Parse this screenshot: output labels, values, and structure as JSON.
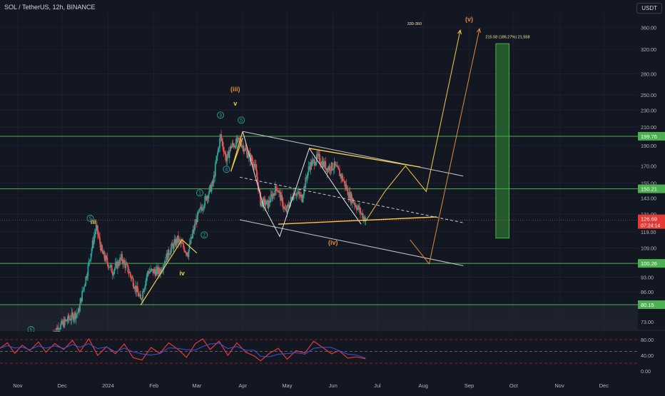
{
  "header": {
    "symbol": "SOL / TetherUS, 12h, BINANCE",
    "currency": "USDT"
  },
  "colors": {
    "background": "#131722",
    "bull": "#26a69a",
    "bear": "#ef5350",
    "hline": "#4caf50",
    "yellow": "#f7c948",
    "orange": "#e08a3c",
    "channel": "#c8c8c8",
    "rsi_red": "#e53935",
    "rsi_blue": "#3f51d5",
    "target_box": "#2e7d32",
    "price_tag": "#e53935"
  },
  "chart_data": {
    "type": "candlestick",
    "price_axis": {
      "scale": "log",
      "ylim": [
        70,
        390
      ],
      "ticks": [
        "360.00",
        "320.00",
        "280.00",
        "250.00",
        "230.00",
        "210.00",
        "190.00",
        "170.00",
        "155.00",
        "143.00",
        "131.00",
        "119.00",
        "109.00",
        "100.00",
        "93.00",
        "86.00",
        "80.15",
        "73.00"
      ],
      "tick_values": [
        360,
        320,
        280,
        250,
        230,
        210,
        190,
        170,
        155,
        143,
        131,
        119,
        109,
        100,
        93,
        86,
        80.15,
        73
      ]
    },
    "time_axis": {
      "labels": [
        "Nov",
        "Dec",
        "2024",
        "Feb",
        "Mar",
        "Apr",
        "May",
        "Jun",
        "Jul",
        "Aug",
        "Sep",
        "Oct",
        "Dec"
      ],
      "label_dates": [
        "2023-11-01",
        "2023-12-01",
        "2024-01-01",
        "2024-02-01",
        "2024-03-01",
        "2024-04-01",
        "2024-05-01",
        "2024-06-01",
        "2024-07-01",
        "2024-08-01",
        "2024-09-01",
        "2024-10-01",
        "2024-12-01"
      ],
      "extra_tick_date": "2024-11-01",
      "extra_tick_label": "Nov",
      "range": [
        "2023-10-20",
        "2024-12-24"
      ]
    },
    "price_path": [
      [
        "2023-11-25",
        69
      ],
      [
        "2023-12-05",
        74
      ],
      [
        "2023-12-12",
        77
      ],
      [
        "2023-12-18",
        96
      ],
      [
        "2023-12-24",
        122
      ],
      [
        "2023-12-28",
        106
      ],
      [
        "2024-01-04",
        96
      ],
      [
        "2024-01-10",
        103
      ],
      [
        "2024-01-15",
        96
      ],
      [
        "2024-01-23",
        82
      ],
      [
        "2024-01-28",
        96
      ],
      [
        "2024-02-05",
        96
      ],
      [
        "2024-02-12",
        108
      ],
      [
        "2024-02-17",
        114
      ],
      [
        "2024-02-24",
        106
      ],
      [
        "2024-03-01",
        128
      ],
      [
        "2024-03-06",
        140
      ],
      [
        "2024-03-12",
        155
      ],
      [
        "2024-03-17",
        200
      ],
      [
        "2024-03-21",
        175
      ],
      [
        "2024-03-24",
        189
      ],
      [
        "2024-03-30",
        195
      ],
      [
        "2024-04-04",
        182
      ],
      [
        "2024-04-09",
        172
      ],
      [
        "2024-04-13",
        140
      ],
      [
        "2024-04-18",
        138
      ],
      [
        "2024-04-24",
        152
      ],
      [
        "2024-04-30",
        132
      ],
      [
        "2024-05-06",
        148
      ],
      [
        "2024-05-11",
        143
      ],
      [
        "2024-05-16",
        170
      ],
      [
        "2024-05-22",
        178
      ],
      [
        "2024-05-28",
        168
      ],
      [
        "2024-06-02",
        170
      ],
      [
        "2024-06-07",
        160
      ],
      [
        "2024-06-12",
        145
      ],
      [
        "2024-06-18",
        135
      ],
      [
        "2024-06-23",
        126.69
      ]
    ],
    "current_price": {
      "value": 126.69,
      "label": "126.69",
      "countdown": "07:24:14"
    },
    "horizontal_levels": [
      {
        "value": 199.76,
        "label": "199.76"
      },
      {
        "value": 150.21,
        "label": "150.21"
      },
      {
        "value": 100.26,
        "label": "100.26"
      },
      {
        "value": 80.15,
        "label": "80.15"
      }
    ],
    "wave_labels": [
      {
        "text": "(iii)",
        "date": "2024-03-27",
        "price": 255,
        "color": "orange"
      },
      {
        "text": "v",
        "date": "2024-03-27",
        "price": 236,
        "color": "yellow"
      },
      {
        "text": "iii",
        "date": "2023-12-22",
        "price": 124,
        "color": "yellow"
      },
      {
        "text": "iv",
        "date": "2024-02-20",
        "price": 94,
        "color": "yellow"
      },
      {
        "text": "(iv)",
        "date": "2024-06-01",
        "price": 111,
        "color": "orange"
      },
      {
        "text": "(v)",
        "date": "2024-09-01",
        "price": 372,
        "color": "orange"
      }
    ],
    "circled_labels": [
      {
        "text": "5",
        "date": "2023-12-20",
        "price": 128
      },
      {
        "text": "1",
        "date": "2024-03-03",
        "price": 147
      },
      {
        "text": "2",
        "date": "2024-03-06",
        "price": 117
      },
      {
        "text": "3",
        "date": "2024-03-17",
        "price": 224
      },
      {
        "text": "4",
        "date": "2024-03-21",
        "price": 167
      },
      {
        "text": "5",
        "date": "2024-03-31",
        "price": 218
      },
      {
        "text": "5",
        "date": "2023-11-10",
        "price": 70
      }
    ],
    "annotations": [
      {
        "text": "330-360",
        "date": "2024-07-26",
        "price": 365
      },
      {
        "text": "215.58 (186.27%) 21,558",
        "date": "2024-09-27",
        "price": 340
      }
    ],
    "projections": {
      "yellow_zigzag": [
        [
          "2024-06-23",
          126
        ],
        [
          "2024-07-06",
          148
        ],
        [
          "2024-07-20",
          170
        ],
        [
          "2024-08-03",
          148
        ],
        [
          "2024-08-26",
          355
        ]
      ],
      "orange_path": [
        [
          "2024-07-23",
          114
        ],
        [
          "2024-08-05",
          100
        ],
        [
          "2024-09-08",
          358
        ]
      ],
      "triangle_upper": [
        [
          "2024-05-16",
          187
        ],
        [
          "2024-07-30",
          169
        ]
      ],
      "triangle_lower": [
        [
          "2024-04-25",
          124
        ],
        [
          "2024-08-10",
          129
        ]
      ],
      "wave_v_wedge": [
        [
          "2024-04-01",
          205
        ],
        [
          "2024-03-24",
          165
        ],
        [
          "2024-04-01",
          198
        ]
      ],
      "wave_iv_wedge": [
        [
          "2024-01-23",
          80
        ],
        [
          "2024-02-20",
          114
        ],
        [
          "2024-03-01",
          106
        ]
      ],
      "zigzag_white": [
        [
          "2024-04-01",
          205
        ],
        [
          "2024-04-15",
          137
        ],
        [
          "2024-04-26",
          116
        ],
        [
          "2024-05-16",
          187
        ],
        [
          "2024-06-05",
          147
        ],
        [
          "2024-06-20",
          124
        ]
      ]
    },
    "channel_lines": [
      {
        "from": [
          "2024-04-01",
          205
        ],
        "to": [
          "2024-08-28",
          161
        ],
        "style": "solid"
      },
      {
        "from": [
          "2024-03-30",
          160
        ],
        "to": [
          "2024-08-28",
          125
        ],
        "style": "dashed"
      },
      {
        "from": [
          "2024-03-30",
          127
        ],
        "to": [
          "2024-08-28",
          99
        ],
        "style": "solid"
      }
    ],
    "target_box": {
      "date_from": "2024-09-19",
      "date_to": "2024-09-28",
      "price_from": 115,
      "price_to": 330
    },
    "rsi": {
      "axis_ticks": [
        "80.00",
        "40.00",
        "0.00"
      ],
      "tick_values": [
        80,
        40,
        0
      ],
      "levels": [
        80,
        50,
        20
      ],
      "range": [
        0,
        100
      ],
      "series": [
        [
          "2023-10-20",
          58
        ],
        [
          "2023-10-25",
          72
        ],
        [
          "2023-10-30",
          45
        ],
        [
          "2023-11-04",
          66
        ],
        [
          "2023-11-09",
          52
        ],
        [
          "2023-11-15",
          74
        ],
        [
          "2023-11-20",
          48
        ],
        [
          "2023-11-26",
          70
        ],
        [
          "2023-12-02",
          55
        ],
        [
          "2023-12-08",
          78
        ],
        [
          "2023-12-13",
          49
        ],
        [
          "2023-12-19",
          82
        ],
        [
          "2023-12-25",
          40
        ],
        [
          "2023-12-31",
          62
        ],
        [
          "2024-01-06",
          44
        ],
        [
          "2024-01-12",
          69
        ],
        [
          "2024-01-18",
          34
        ],
        [
          "2024-01-24",
          28
        ],
        [
          "2024-01-30",
          60
        ],
        [
          "2024-02-05",
          45
        ],
        [
          "2024-02-11",
          72
        ],
        [
          "2024-02-17",
          56
        ],
        [
          "2024-02-23",
          35
        ],
        [
          "2024-02-29",
          70
        ],
        [
          "2024-03-05",
          82
        ],
        [
          "2024-03-10",
          55
        ],
        [
          "2024-03-16",
          76
        ],
        [
          "2024-03-22",
          40
        ],
        [
          "2024-03-28",
          72
        ],
        [
          "2024-04-03",
          48
        ],
        [
          "2024-04-09",
          38
        ],
        [
          "2024-04-13",
          26
        ],
        [
          "2024-04-19",
          45
        ],
        [
          "2024-04-25",
          58
        ],
        [
          "2024-05-01",
          30
        ],
        [
          "2024-05-07",
          52
        ],
        [
          "2024-05-13",
          46
        ],
        [
          "2024-05-19",
          76
        ],
        [
          "2024-05-25",
          60
        ],
        [
          "2024-05-31",
          44
        ],
        [
          "2024-06-05",
          52
        ],
        [
          "2024-06-11",
          33
        ],
        [
          "2024-06-17",
          36
        ],
        [
          "2024-06-23",
          31
        ]
      ]
    }
  }
}
